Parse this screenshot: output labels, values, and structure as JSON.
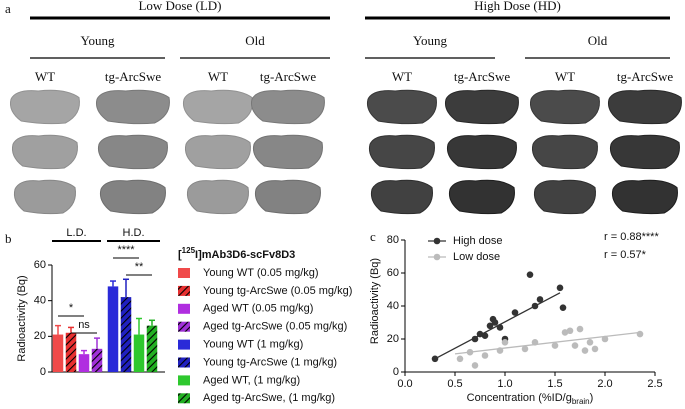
{
  "panel_a": {
    "label": "a",
    "groups": [
      {
        "title": "Low Dose (LD)",
        "subgroups": [
          {
            "title": "Young",
            "columns": [
              "WT",
              "tg-ArcSwe"
            ]
          },
          {
            "title": "Old",
            "columns": [
              "WT",
              "tg-ArcSwe"
            ]
          }
        ]
      },
      {
        "title": "High Dose (HD)",
        "subgroups": [
          {
            "title": "Young",
            "columns": [
              "WT",
              "tg-ArcSwe"
            ]
          },
          {
            "title": "Old",
            "columns": [
              "WT",
              "tg-ArcSwe"
            ]
          }
        ]
      }
    ]
  },
  "chart_data": [
    {
      "type": "bar",
      "label": "b",
      "ylabel": "Radioactivity (Bq)",
      "legend_title": [
        "[",
        "125",
        "I]mAb3D6-scFv8D3"
      ],
      "group_labels": [
        "L.D.",
        "H.D."
      ],
      "significance": [
        "*",
        "ns",
        "****",
        "**"
      ],
      "ylim": [
        0,
        60
      ],
      "yticks": [
        0,
        20,
        40,
        60
      ],
      "series": [
        {
          "name": "Young WT (0.05 mg/kg)",
          "color": "#f04a4a",
          "hatch": false,
          "values": [
            21
          ],
          "errors": [
            5
          ]
        },
        {
          "name": "Young tg-ArcSwe (0.05 mg/kg)",
          "color": "#e83030",
          "hatch": true,
          "values": [
            22
          ],
          "errors": [
            3
          ]
        },
        {
          "name": "Aged WT (0.05 mg/kg)",
          "color": "#b02ee0",
          "hatch": false,
          "values": [
            10
          ],
          "errors": [
            2
          ]
        },
        {
          "name": "Aged tg-ArcSwe (0.05 mg/kg)",
          "color": "#a030d8",
          "hatch": true,
          "values": [
            13
          ],
          "errors": [
            6
          ]
        },
        {
          "name": "Young WT (1 mg/kg)",
          "color": "#2a2ad8",
          "hatch": false,
          "values": [
            48
          ],
          "errors": [
            3
          ]
        },
        {
          "name": "Young tg-ArcSwe (1 mg/kg)",
          "color": "#2020c0",
          "hatch": true,
          "values": [
            42
          ],
          "errors": [
            10
          ]
        },
        {
          "name": "Aged WT, (1 mg/kg)",
          "color": "#2ec82e",
          "hatch": false,
          "values": [
            21
          ],
          "errors": [
            9
          ]
        },
        {
          "name": "Aged tg-ArcSwe, (1 mg/kg)",
          "color": "#22b022",
          "hatch": true,
          "values": [
            26
          ],
          "errors": [
            3
          ]
        }
      ]
    },
    {
      "type": "scatter",
      "label": "c",
      "ylabel": "Radioactivity (Bq)",
      "xlabel": [
        "Concentration (%ID/g",
        "brain",
        ")"
      ],
      "xlim": [
        0,
        2.5
      ],
      "xticks": [
        {
          "value": 0,
          "label": "0.0"
        },
        0.5,
        {
          "value": 1,
          "label": "1.0"
        },
        1.5,
        {
          "value": 2,
          "label": "2.0"
        },
        2.5
      ],
      "ylim": [
        0,
        80
      ],
      "yticks": [
        0,
        20,
        40,
        60,
        80
      ],
      "annotations": [
        "r = 0.88****",
        "r = 0.57*"
      ],
      "series": [
        {
          "name": "High dose",
          "color": "#333333",
          "x": [
            0.3,
            0.7,
            0.75,
            0.8,
            0.85,
            0.88,
            0.9,
            0.95,
            1.0,
            1.1,
            1.25,
            1.3,
            1.35,
            1.55,
            1.58
          ],
          "values": [
            8,
            20,
            23,
            22,
            28,
            32,
            30,
            27,
            20,
            36,
            59,
            40,
            44,
            51,
            39
          ],
          "fit_x": [
            0.3,
            1.55
          ],
          "fit_y": [
            8,
            48
          ]
        },
        {
          "name": "Low dose",
          "color": "#bbbbbb",
          "x": [
            0.55,
            0.65,
            0.7,
            0.8,
            0.95,
            1.0,
            1.2,
            1.3,
            1.5,
            1.6,
            1.65,
            1.7,
            1.75,
            1.8,
            1.85,
            1.9,
            2.0,
            2.35
          ],
          "values": [
            8,
            12,
            4,
            10,
            13,
            18,
            14,
            18,
            16,
            24,
            25,
            16,
            26,
            13,
            18,
            14,
            20,
            23
          ],
          "fit_x": [
            0.5,
            2.35
          ],
          "fit_y": [
            11,
            24
          ]
        }
      ]
    }
  ]
}
